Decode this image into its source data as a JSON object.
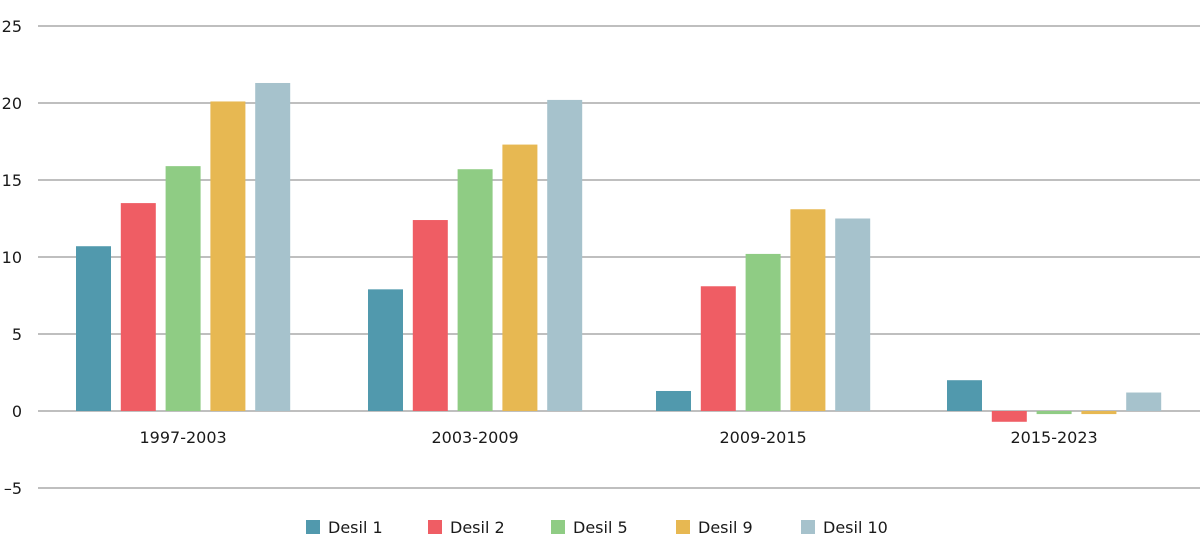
{
  "chart_data": {
    "type": "bar",
    "categories": [
      "1997-2003",
      "2003-2009",
      "2009-2015",
      "2015-2023"
    ],
    "series": [
      {
        "name": "Desil 1",
        "color": "#5199ad",
        "values": [
          10.7,
          7.9,
          1.3,
          2.0
        ]
      },
      {
        "name": "Desil 2",
        "color": "#ef5d64",
        "values": [
          13.5,
          12.4,
          8.1,
          -0.7
        ]
      },
      {
        "name": "Desil 5",
        "color": "#8fcc84",
        "values": [
          15.9,
          15.7,
          10.2,
          -0.2
        ]
      },
      {
        "name": "Desil 9",
        "color": "#e7b852",
        "values": [
          20.1,
          17.3,
          13.1,
          -0.2
        ]
      },
      {
        "name": "Desil 10",
        "color": "#a6c2cc",
        "values": [
          21.3,
          20.2,
          12.5,
          1.2
        ]
      }
    ],
    "ylim": [
      -5,
      25
    ],
    "yticks": [
      "25",
      "20",
      "15",
      "10",
      "5",
      "0",
      "–5"
    ],
    "ytick_values": [
      25,
      20,
      15,
      10,
      5,
      0,
      -5
    ],
    "grid": true,
    "legend_position": "bottom"
  }
}
